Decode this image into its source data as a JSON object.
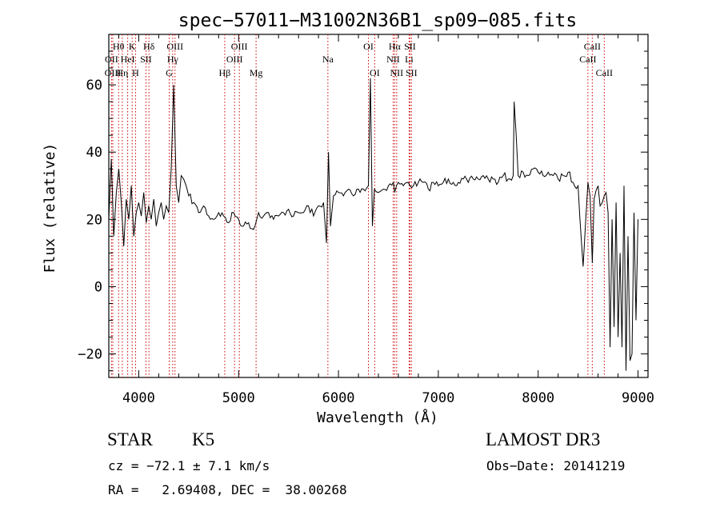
{
  "chart_data": {
    "type": "line",
    "title": "spec−57011−M31002N36B1_sp09−085.fits",
    "xlabel": "Wavelength (Å)",
    "ylabel": "Flux (relative)",
    "xlim": [
      3700,
      9100
    ],
    "ylim": [
      -27,
      75
    ],
    "xticks": [
      4000,
      5000,
      6000,
      7000,
      8000,
      9000
    ],
    "yticks": [
      -20,
      0,
      20,
      40,
      60
    ],
    "grid": false,
    "series": [
      {
        "x": [
          3700,
          3725,
          3750,
          3775,
          3800,
          3825,
          3850,
          3875,
          3900,
          3925,
          3950,
          3975,
          4000,
          4025,
          4050,
          4075,
          4100,
          4125,
          4150,
          4175,
          4200,
          4225,
          4250,
          4275,
          4300,
          4325,
          4350,
          4375,
          4400,
          4425,
          4450,
          4475,
          4500,
          4550,
          4600,
          4650,
          4700,
          4750,
          4800,
          4850,
          4900,
          4950,
          5000,
          5050,
          5100,
          5150,
          5200,
          5250,
          5300,
          5350,
          5400,
          5450,
          5500,
          5550,
          5600,
          5650,
          5700,
          5750,
          5800,
          5850,
          5880,
          5900,
          5920,
          5950,
          6000,
          6050,
          6100,
          6150,
          6200,
          6250,
          6300,
          6320,
          6340,
          6360,
          6400,
          6450,
          6500,
          6550,
          6563,
          6600,
          6650,
          6700,
          6750,
          6800,
          6850,
          6900,
          6950,
          7000,
          7050,
          7100,
          7150,
          7200,
          7250,
          7300,
          7350,
          7400,
          7450,
          7500,
          7550,
          7600,
          7650,
          7700,
          7750,
          7760,
          7800,
          7850,
          7900,
          7950,
          8000,
          8050,
          8100,
          8150,
          8200,
          8250,
          8300,
          8350,
          8400,
          8450,
          8498,
          8520,
          8542,
          8560,
          8600,
          8620,
          8662,
          8680,
          8700,
          8720,
          8740,
          8760,
          8780,
          8800,
          8820,
          8840,
          8860,
          8880,
          8900,
          8920,
          8940,
          8960,
          8980,
          9000
        ],
        "y": [
          20,
          38,
          15,
          28,
          35,
          25,
          12,
          26,
          20,
          30,
          15,
          22,
          25,
          21,
          28,
          19,
          24,
          20,
          26,
          18,
          22,
          25,
          20,
          24,
          22,
          35,
          60,
          30,
          25,
          33,
          32,
          30,
          27,
          25,
          22,
          24,
          21,
          20,
          22,
          21,
          19,
          22,
          20,
          18,
          19,
          17,
          22,
          21,
          22,
          20,
          21,
          22,
          23,
          21,
          22,
          22,
          24,
          21,
          24,
          25,
          13,
          40,
          18,
          27,
          28,
          27,
          29,
          27,
          29,
          29,
          30,
          62,
          18,
          29,
          28,
          29,
          30,
          31,
          28,
          31,
          30,
          31,
          30,
          31,
          31,
          29,
          31,
          30,
          31,
          32,
          31,
          31,
          32,
          31,
          32,
          32,
          33,
          32,
          32,
          31,
          33,
          32,
          33,
          55,
          33,
          34,
          33,
          35,
          34,
          33,
          34,
          33,
          32,
          33,
          34,
          31,
          30,
          6,
          31,
          27,
          7,
          26,
          30,
          24,
          27,
          28,
          22,
          -18,
          20,
          -12,
          25,
          -15,
          10,
          -18,
          30,
          -25,
          15,
          -22,
          -20,
          22,
          -10,
          20
        ]
      }
    ],
    "lines": [
      {
        "name": "OII",
        "x": 3727,
        "row": 1
      },
      {
        "name": "OIII",
        "x": 3740,
        "row": 2
      },
      {
        "name": "Hθ",
        "x": 3798,
        "row": 0
      },
      {
        "name": "Hη",
        "x": 3835,
        "row": 2
      },
      {
        "name": "HeI",
        "x": 3889,
        "row": 1
      },
      {
        "name": "K",
        "x": 3934,
        "row": 0
      },
      {
        "name": "H",
        "x": 3968,
        "row": 2
      },
      {
        "name": "SII",
        "x": 4072,
        "row": 1
      },
      {
        "name": "Hδ",
        "x": 4102,
        "row": 0
      },
      {
        "name": "G",
        "x": 4305,
        "row": 2
      },
      {
        "name": "Hγ",
        "x": 4340,
        "row": 1
      },
      {
        "name": "OIII",
        "x": 4363,
        "row": 0
      },
      {
        "name": "Hβ",
        "x": 4861,
        "row": 2
      },
      {
        "name": "OIII",
        "x": 4959,
        "row": 1
      },
      {
        "name": "OIII",
        "x": 5007,
        "row": 0
      },
      {
        "name": "Mg",
        "x": 5175,
        "row": 2
      },
      {
        "name": "Na",
        "x": 5894,
        "row": 1
      },
      {
        "name": "OI",
        "x": 6300,
        "row": 0
      },
      {
        "name": "OI",
        "x": 6363,
        "row": 2
      },
      {
        "name": "NII",
        "x": 6548,
        "row": 1
      },
      {
        "name": "Hα",
        "x": 6563,
        "row": 0
      },
      {
        "name": "NII",
        "x": 6583,
        "row": 2
      },
      {
        "name": "Li",
        "x": 6708,
        "row": 1
      },
      {
        "name": "SII",
        "x": 6716,
        "row": 0
      },
      {
        "name": "SII",
        "x": 6731,
        "row": 2
      },
      {
        "name": "CaII",
        "x": 8498,
        "row": 1
      },
      {
        "name": "CaII",
        "x": 8542,
        "row": 0
      },
      {
        "name": "CaII",
        "x": 8662,
        "row": 2
      }
    ]
  },
  "info": {
    "class_label": "STAR",
    "subclass": "K5",
    "velocity": "cz = −72.1 ± 7.1 km/s",
    "coords": "RA =   2.69408, DEC =  38.00268",
    "survey": "LAMOST DR3",
    "obs_date": "Obs−Date: 20141219"
  },
  "colors": {
    "spectrum": "#000000",
    "line_markers": "#cc0000",
    "background": "#ffffff"
  }
}
